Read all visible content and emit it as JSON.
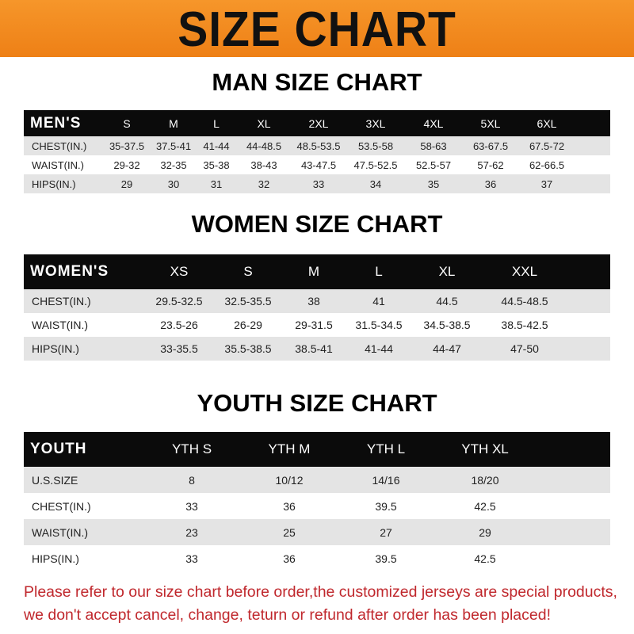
{
  "banner": {
    "title": "SIZE CHART",
    "color": "#f08a1e"
  },
  "men": {
    "title": "MAN SIZE CHART",
    "header": [
      "MEN'S",
      "S",
      "M",
      "L",
      "XL",
      "2XL",
      "3XL",
      "4XL",
      "5XL",
      "6XL"
    ],
    "rows": [
      [
        "CHEST(IN.)",
        "35-37.5",
        "37.5-41",
        "41-44",
        "44-48.5",
        "48.5-53.5",
        "53.5-58",
        "58-63",
        "63-67.5",
        "67.5-72"
      ],
      [
        "WAIST(IN.)",
        "29-32",
        "32-35",
        "35-38",
        "38-43",
        "43-47.5",
        "47.5-52.5",
        "52.5-57",
        "57-62",
        "62-66.5"
      ],
      [
        "HIPS(IN.)",
        "29",
        "30",
        "31",
        "32",
        "33",
        "34",
        "35",
        "36",
        "37"
      ]
    ]
  },
  "women": {
    "title": "WOMEN SIZE CHART",
    "header": [
      "WOMEN'S",
      "XS",
      "S",
      "M",
      "L",
      "XL",
      "XXL"
    ],
    "rows": [
      [
        "CHEST(IN.)",
        "29.5-32.5",
        "32.5-35.5",
        "38",
        "41",
        "44.5",
        "44.5-48.5"
      ],
      [
        "WAIST(IN.)",
        "23.5-26",
        "26-29",
        "29-31.5",
        "31.5-34.5",
        "34.5-38.5",
        "38.5-42.5"
      ],
      [
        "HIPS(IN.)",
        "33-35.5",
        "35.5-38.5",
        "38.5-41",
        "41-44",
        "44-47",
        "47-50"
      ]
    ]
  },
  "youth": {
    "title": "YOUTH SIZE CHART",
    "header": [
      "YOUTH",
      "YTH S",
      "YTH M",
      "YTH L",
      "YTH XL"
    ],
    "rows": [
      [
        "U.S.SIZE",
        "8",
        "10/12",
        "14/16",
        "18/20"
      ],
      [
        "CHEST(IN.)",
        "33",
        "36",
        "39.5",
        "42.5"
      ],
      [
        "WAIST(IN.)",
        "23",
        "25",
        "27",
        "29"
      ],
      [
        "HIPS(IN.)",
        "33",
        "36",
        "39.5",
        "42.5"
      ]
    ]
  },
  "note": {
    "line1": "Please refer to our size chart before order,the customized jerseys are special products,",
    "line2": "we don't accept cancel, change, teturn or refund after order has been placed!",
    "color": "#c0282d"
  }
}
